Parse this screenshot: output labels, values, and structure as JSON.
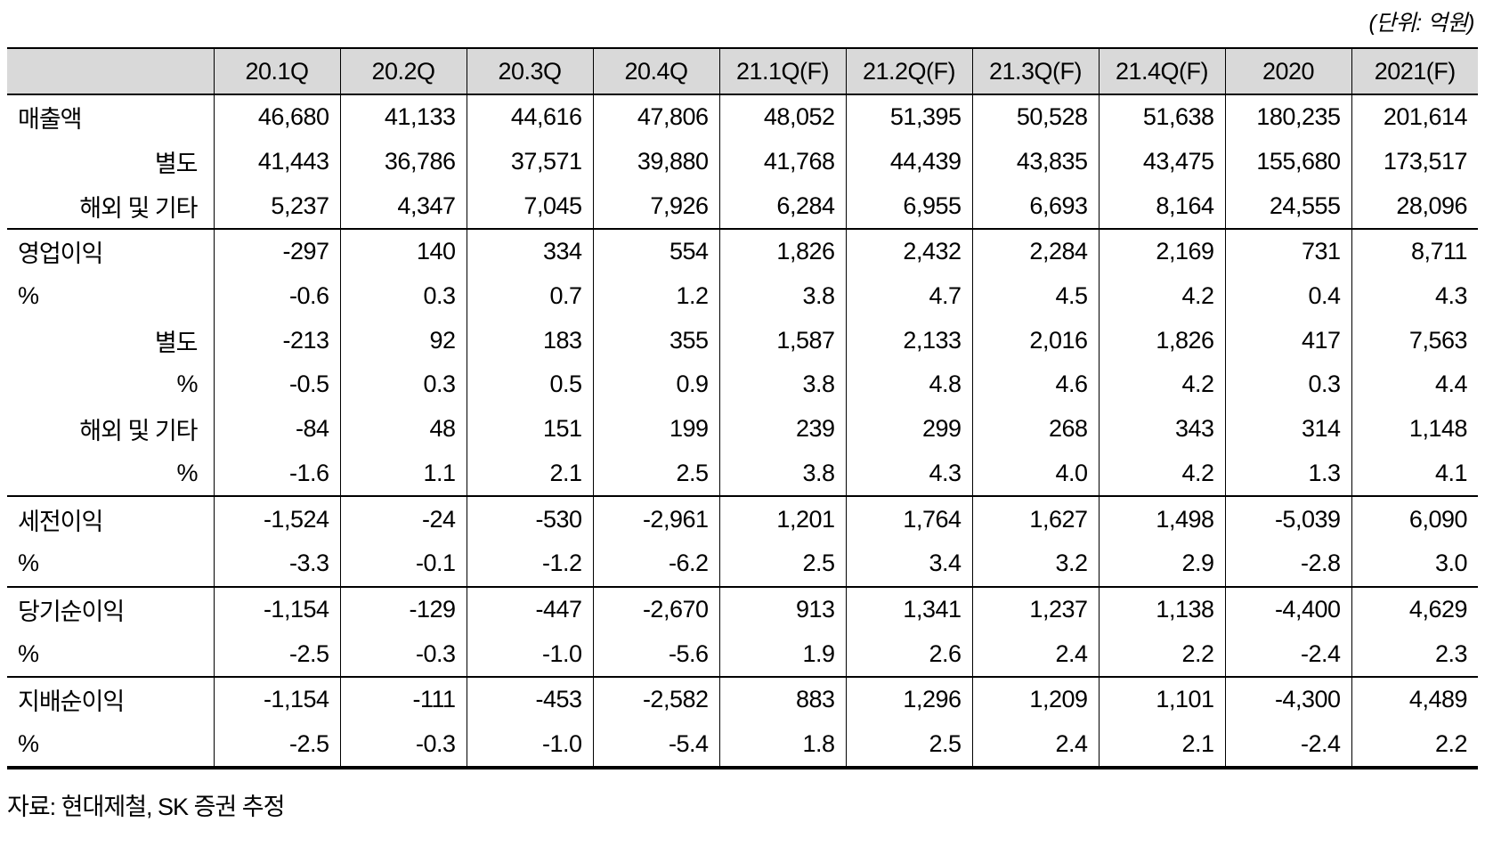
{
  "unit_note": "(단위: 억원)",
  "source_note": "자료: 현대제철, SK 증권 추정",
  "colors": {
    "header_bg": "#d9d9d9",
    "border": "#000000",
    "text": "#000000",
    "background": "#ffffff"
  },
  "table": {
    "columns": [
      "20.1Q",
      "20.2Q",
      "20.3Q",
      "20.4Q",
      "21.1Q(F)",
      "21.2Q(F)",
      "21.3Q(F)",
      "21.4Q(F)",
      "2020",
      "2021(F)"
    ],
    "sections": [
      {
        "name": "매출액",
        "rows": [
          {
            "label": "매출액",
            "align": "left",
            "values": [
              "46,680",
              "41,133",
              "44,616",
              "47,806",
              "48,052",
              "51,395",
              "50,528",
              "51,638",
              "180,235",
              "201,614"
            ]
          },
          {
            "label": "별도",
            "align": "right",
            "values": [
              "41,443",
              "36,786",
              "37,571",
              "39,880",
              "41,768",
              "44,439",
              "43,835",
              "43,475",
              "155,680",
              "173,517"
            ]
          },
          {
            "label": "해외 및 기타",
            "align": "right",
            "values": [
              "5,237",
              "4,347",
              "7,045",
              "7,926",
              "6,284",
              "6,955",
              "6,693",
              "8,164",
              "24,555",
              "28,096"
            ]
          }
        ]
      },
      {
        "name": "영업이익",
        "rows": [
          {
            "label": "영업이익",
            "align": "left",
            "values": [
              "-297",
              "140",
              "334",
              "554",
              "1,826",
              "2,432",
              "2,284",
              "2,169",
              "731",
              "8,711"
            ]
          },
          {
            "label": "%",
            "align": "left",
            "values": [
              "-0.6",
              "0.3",
              "0.7",
              "1.2",
              "3.8",
              "4.7",
              "4.5",
              "4.2",
              "0.4",
              "4.3"
            ]
          },
          {
            "label": "별도",
            "align": "right",
            "values": [
              "-213",
              "92",
              "183",
              "355",
              "1,587",
              "2,133",
              "2,016",
              "1,826",
              "417",
              "7,563"
            ]
          },
          {
            "label": "%",
            "align": "right",
            "values": [
              "-0.5",
              "0.3",
              "0.5",
              "0.9",
              "3.8",
              "4.8",
              "4.6",
              "4.2",
              "0.3",
              "4.4"
            ]
          },
          {
            "label": "해외 및 기타",
            "align": "right",
            "values": [
              "-84",
              "48",
              "151",
              "199",
              "239",
              "299",
              "268",
              "343",
              "314",
              "1,148"
            ]
          },
          {
            "label": "%",
            "align": "right",
            "values": [
              "-1.6",
              "1.1",
              "2.1",
              "2.5",
              "3.8",
              "4.3",
              "4.0",
              "4.2",
              "1.3",
              "4.1"
            ]
          }
        ]
      },
      {
        "name": "세전이익",
        "rows": [
          {
            "label": "세전이익",
            "align": "left",
            "values": [
              "-1,524",
              "-24",
              "-530",
              "-2,961",
              "1,201",
              "1,764",
              "1,627",
              "1,498",
              "-5,039",
              "6,090"
            ]
          },
          {
            "label": "%",
            "align": "left",
            "values": [
              "-3.3",
              "-0.1",
              "-1.2",
              "-6.2",
              "2.5",
              "3.4",
              "3.2",
              "2.9",
              "-2.8",
              "3.0"
            ]
          }
        ]
      },
      {
        "name": "당기순이익",
        "rows": [
          {
            "label": "당기순이익",
            "align": "left",
            "values": [
              "-1,154",
              "-129",
              "-447",
              "-2,670",
              "913",
              "1,341",
              "1,237",
              "1,138",
              "-4,400",
              "4,629"
            ]
          },
          {
            "label": "%",
            "align": "left",
            "values": [
              "-2.5",
              "-0.3",
              "-1.0",
              "-5.6",
              "1.9",
              "2.6",
              "2.4",
              "2.2",
              "-2.4",
              "2.3"
            ]
          }
        ]
      },
      {
        "name": "지배순이익",
        "rows": [
          {
            "label": "지배순이익",
            "align": "left",
            "values": [
              "-1,154",
              "-111",
              "-453",
              "-2,582",
              "883",
              "1,296",
              "1,209",
              "1,101",
              "-4,300",
              "4,489"
            ]
          },
          {
            "label": "%",
            "align": "left",
            "values": [
              "-2.5",
              "-0.3",
              "-1.0",
              "-5.4",
              "1.8",
              "2.5",
              "2.4",
              "2.1",
              "-2.4",
              "2.2"
            ]
          }
        ]
      }
    ]
  }
}
